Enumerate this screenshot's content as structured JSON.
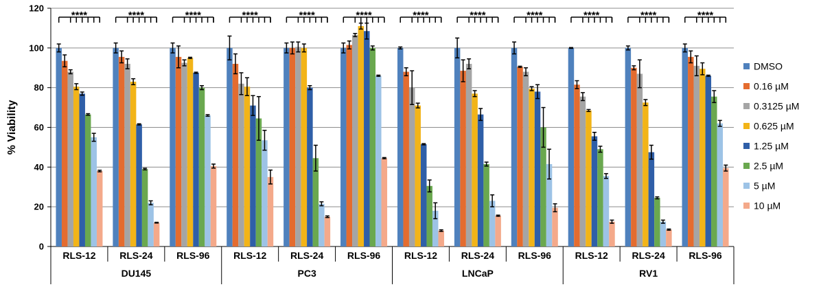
{
  "chart_data": {
    "type": "bar",
    "ylabel": "% Viability",
    "ylim": [
      0,
      120
    ],
    "yticks": [
      0,
      20,
      40,
      60,
      80,
      100,
      120
    ],
    "grid": "horizontal",
    "legend_position": "right",
    "significance_label": "****",
    "groups": [
      {
        "name": "DU145",
        "categories": [
          "RLS-12",
          "RLS-24",
          "RLS-96"
        ]
      },
      {
        "name": "PC3",
        "categories": [
          "RLS-12",
          "RLS-24",
          "RLS-96"
        ]
      },
      {
        "name": "LNCaP",
        "categories": [
          "RLS-12",
          "RLS-24",
          "RLS-96"
        ]
      },
      {
        "name": "RV1",
        "categories": [
          "RLS-12",
          "RLS-24",
          "RLS-96"
        ]
      }
    ],
    "series": [
      {
        "name": "DMSO",
        "color": "#4F81BD",
        "values": [
          100,
          100,
          100,
          100,
          100,
          100,
          100,
          100,
          100,
          100,
          100,
          100
        ],
        "errors": [
          2,
          2.5,
          2.5,
          6,
          2.5,
          2.5,
          0.5,
          5,
          3,
          0.2,
          1,
          2
        ]
      },
      {
        "name": "0.16 µM",
        "color": "#E46C2F",
        "values": [
          93.5,
          95.5,
          95.5,
          92,
          100,
          101.5,
          88,
          88.5,
          90.5,
          81.5,
          90,
          95.5
        ],
        "errors": [
          3,
          3,
          5.5,
          5,
          3,
          2,
          2,
          5.5,
          0.3,
          2,
          1,
          3
        ]
      },
      {
        "name": "0.3125 µM",
        "color": "#A5A5A5",
        "values": [
          88,
          92,
          92.5,
          82,
          100.5,
          106.5,
          80,
          92,
          88,
          75.5,
          87,
          91
        ],
        "errors": [
          1,
          2.5,
          1.5,
          5.5,
          2.5,
          0.8,
          8.5,
          2.5,
          2,
          2,
          7,
          5
        ]
      },
      {
        "name": "0.625 µM",
        "color": "#F2B418",
        "values": [
          80.5,
          83,
          95,
          80.5,
          100,
          111,
          71,
          77,
          79.5,
          68.5,
          72.5,
          89.5
        ],
        "errors": [
          1.5,
          1.5,
          0.3,
          4.5,
          2,
          1.5,
          1.2,
          1.5,
          1,
          0.5,
          1.5,
          3
        ]
      },
      {
        "name": "1.25 µM",
        "color": "#2F5FA8",
        "values": [
          77,
          61.5,
          87.5,
          71,
          80,
          108.5,
          51.5,
          66.5,
          78,
          55.5,
          47.5,
          86
        ],
        "errors": [
          0.8,
          0.3,
          0.3,
          5,
          1,
          4,
          0.3,
          3,
          3.5,
          2,
          3.5,
          0.3
        ]
      },
      {
        "name": "2.5 µM",
        "color": "#6AA84F",
        "values": [
          66.5,
          39,
          80,
          64.5,
          44.5,
          100,
          30.5,
          41.5,
          60,
          49,
          24.5,
          75.5
        ],
        "errors": [
          0.4,
          0.4,
          1,
          11,
          6.5,
          1,
          3,
          1,
          10,
          1.5,
          0.5,
          3
        ]
      },
      {
        "name": "5 µM",
        "color": "#9DC3E6",
        "values": [
          55,
          22,
          66,
          53.5,
          21.5,
          86,
          18,
          23,
          41.5,
          35.5,
          12.5,
          62
        ],
        "errors": [
          2,
          1,
          0.4,
          5,
          1,
          0.3,
          4,
          3,
          7.5,
          1.2,
          0.8,
          1.5
        ]
      },
      {
        "name": "10 µM",
        "color": "#F4A98A",
        "values": [
          38,
          12,
          40.5,
          35,
          15,
          44.5,
          8,
          15.5,
          19.5,
          12.5,
          8.5,
          39.5
        ],
        "errors": [
          0.4,
          0.2,
          1,
          3.5,
          0.4,
          0.3,
          0.4,
          0.3,
          2,
          0.8,
          0.3,
          1.5
        ]
      }
    ]
  }
}
